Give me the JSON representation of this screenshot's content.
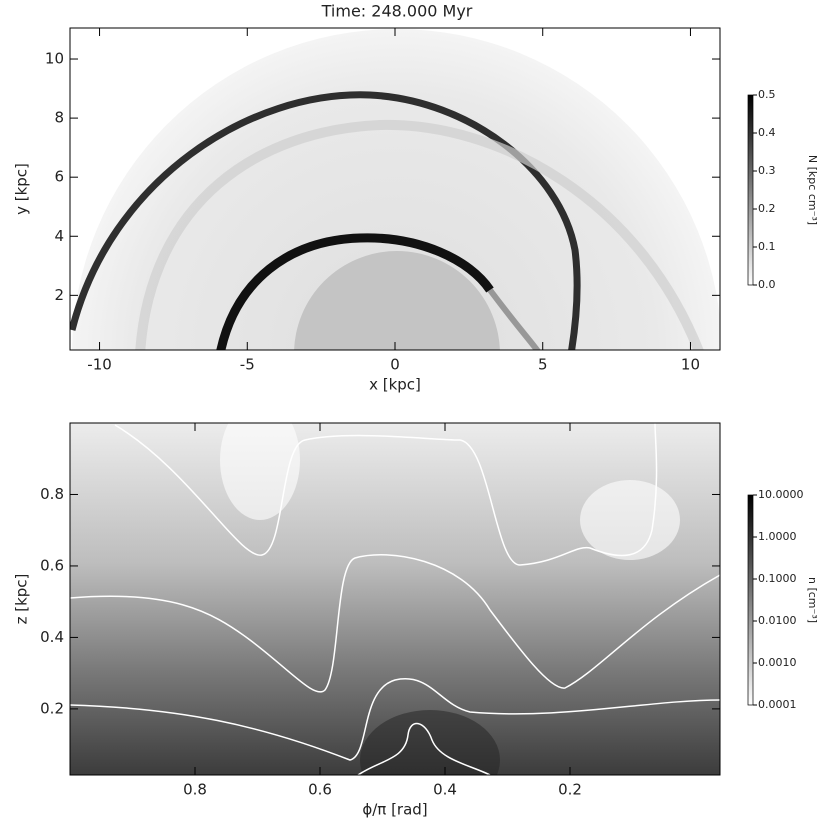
{
  "chart_data": [
    {
      "type": "heatmap",
      "title": "Time: 248.000 Myr",
      "xlabel": "x [kpc]",
      "ylabel": "y [kpc]",
      "xlim": [
        -11,
        11
      ],
      "xticks": [
        -10,
        -5,
        0,
        5,
        10
      ],
      "ylim": [
        0.15,
        11.05
      ],
      "yticks": [
        2,
        4,
        6,
        8,
        10
      ],
      "colorbar": {
        "label": "N [kpc cm⁻³]",
        "lim": [
          0,
          0.5
        ],
        "log": false,
        "ticks": [
          {
            "value": 0,
            "label": "0.0"
          },
          0.1,
          0.2,
          0.3,
          0.4,
          0.5
        ]
      }
    },
    {
      "type": "heatmap",
      "xlabel": "ϕ/π [rad]",
      "ylabel": "z [kpc]",
      "xlim": [
        1.0,
        -0.04
      ],
      "xticks": [
        0.8,
        0.6,
        0.4,
        0.2
      ],
      "ylim": [
        0.015,
        1.0
      ],
      "yticks": [
        0.2,
        0.4,
        0.6,
        0.8
      ],
      "colorbar": {
        "label": "n [cm⁻³]",
        "lim": [
          0.0001,
          10
        ],
        "log": true,
        "ticks": [
          0.0001,
          {
            "value": 0.001,
            "label": "0.0010"
          },
          {
            "value": 0.01,
            "label": "0.0100"
          },
          {
            "value": 0.1,
            "label": "0.1000"
          },
          {
            "value": 1,
            "label": "1.0000"
          },
          {
            "value": 10,
            "label": "10.0000"
          }
        ]
      }
    }
  ]
}
